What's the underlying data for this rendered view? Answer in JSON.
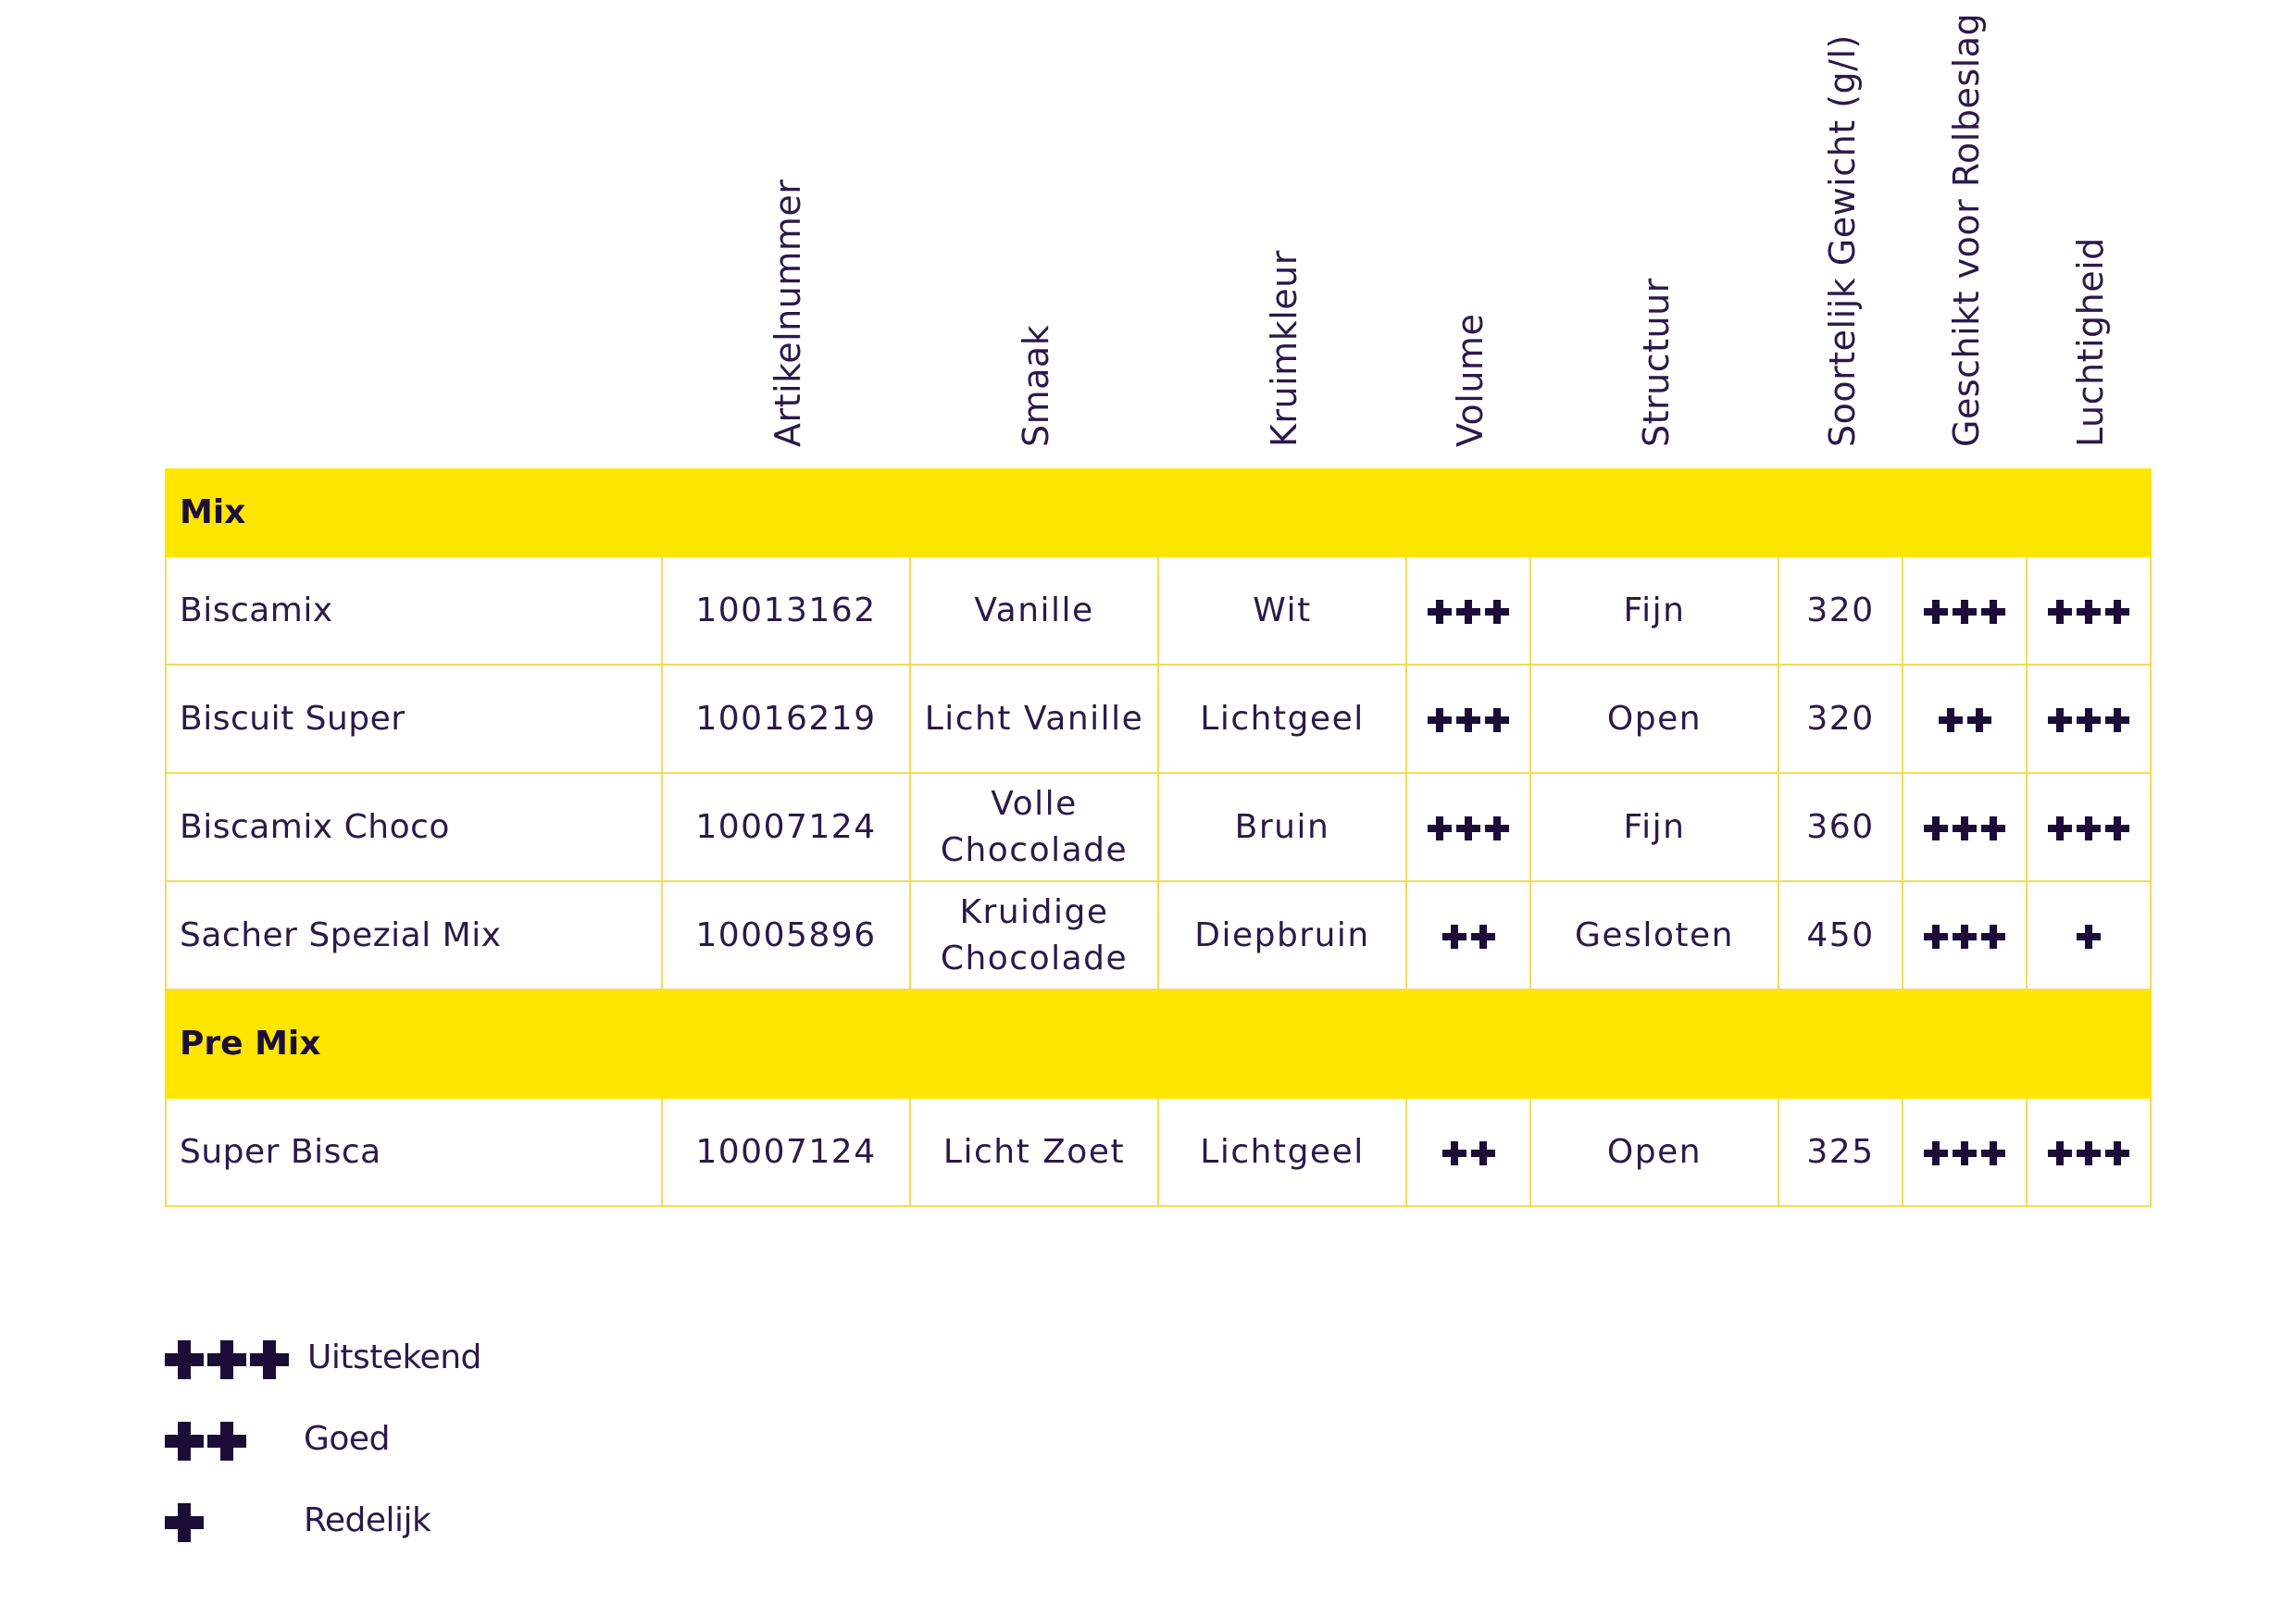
{
  "columns": [
    "Artikelnummer",
    "Smaak",
    "Kruimkleur",
    "Volume",
    "Structuur",
    "Soortelijk Gewicht (g/l)",
    "Geschikt voor Rolbeslag",
    "Luchtigheid"
  ],
  "groups": [
    {
      "label": "Mix",
      "rows": [
        {
          "name": "Biscamix",
          "artikel": "10013162",
          "smaak": [
            "Vanille"
          ],
          "kleur": "Wit",
          "volume": 3,
          "structuur": "Fijn",
          "gewicht": "320",
          "rolbeslag": 3,
          "luchtigheid": 3
        },
        {
          "name": "Biscuit Super",
          "artikel": "10016219",
          "smaak": [
            "Licht Vanille"
          ],
          "kleur": "Lichtgeel",
          "volume": 3,
          "structuur": "Open",
          "gewicht": "320",
          "rolbeslag": 2,
          "luchtigheid": 3
        },
        {
          "name": "Biscamix Choco",
          "artikel": "10007124",
          "smaak": [
            "Volle",
            "Chocolade"
          ],
          "kleur": "Bruin",
          "volume": 3,
          "structuur": "Fijn",
          "gewicht": "360",
          "rolbeslag": 3,
          "luchtigheid": 3
        },
        {
          "name": "Sacher Spezial Mix",
          "artikel": "10005896",
          "smaak": [
            "Kruidige",
            "Chocolade"
          ],
          "kleur": "Diepbruin",
          "volume": 2,
          "structuur": "Gesloten",
          "gewicht": "450",
          "rolbeslag": 3,
          "luchtigheid": 1
        }
      ]
    },
    {
      "label": "Pre Mix",
      "rows": [
        {
          "name": "Super Bisca",
          "artikel": "10007124",
          "smaak": [
            "Licht Zoet"
          ],
          "kleur": "Lichtgeel",
          "volume": 2,
          "structuur": "Open",
          "gewicht": "325",
          "rolbeslag": 3,
          "luchtigheid": 3
        }
      ]
    }
  ],
  "legend": [
    {
      "count": 3,
      "label": "Uitstekend"
    },
    {
      "count": 2,
      "label": "Goed"
    },
    {
      "count": 1,
      "label": "Redelijk"
    }
  ],
  "colors": {
    "accent": "#ffe600",
    "border": "#f2dc5a",
    "text": "#2a1a4a",
    "symbol": "#1c0d38"
  }
}
